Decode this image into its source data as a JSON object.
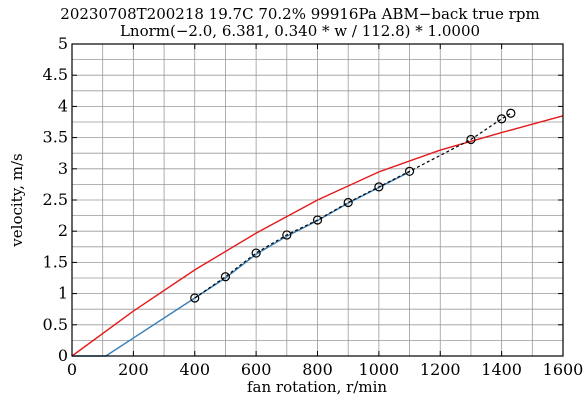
{
  "chart_data": {
    "type": "line",
    "title": "20230708T200218 19.7C 70.2% 99916Pa ABM−back true rpm",
    "subtitle": "Lnorm(−2.0, 6.381, 0.340 * w / 112.8) * 1.0000",
    "xlabel": "fan rotation, r/min",
    "ylabel": "velocity, m/s",
    "xlim": [
      0,
      1600
    ],
    "ylim": [
      0,
      5
    ],
    "xticks": [
      0,
      200,
      400,
      600,
      800,
      1000,
      1200,
      1400,
      1600
    ],
    "xtick_labels": [
      "0",
      "200",
      "400",
      "600",
      "800",
      "1000",
      "1200",
      "1400",
      "1600"
    ],
    "yticks": [
      0,
      0.5,
      1,
      1.5,
      2,
      2.5,
      3,
      3.5,
      4,
      4.5,
      5
    ],
    "ytick_labels": [
      "0",
      "0.5",
      "1",
      "1.5",
      "2",
      "2.5",
      "3",
      "3.5",
      "4",
      "4.5",
      "5"
    ],
    "grid": true,
    "legend": "none",
    "series": [
      {
        "style": "solid",
        "color": "#e41a1c",
        "x": [
          0,
          200,
          400,
          600,
          800,
          1000,
          1200,
          1400,
          1600
        ],
        "y": [
          0,
          0.72,
          1.38,
          1.97,
          2.5,
          2.95,
          3.3,
          3.58,
          3.85
        ]
      },
      {
        "style": "solid",
        "color": "#377eb8",
        "x": [
          0,
          110,
          400,
          500,
          600,
          700,
          800,
          900,
          1000,
          1100
        ],
        "y": [
          0,
          0,
          0.93,
          1.25,
          1.63,
          1.92,
          2.17,
          2.45,
          2.7,
          2.95
        ]
      },
      {
        "style": "dashed-markers",
        "color": "#000000",
        "marker": "circle",
        "x": [
          400,
          500,
          600,
          700,
          800,
          900,
          1000,
          1100,
          1300,
          1400,
          1430
        ],
        "y": [
          0.93,
          1.27,
          1.65,
          1.94,
          2.18,
          2.46,
          2.71,
          2.96,
          3.47,
          3.8,
          3.89
        ]
      }
    ]
  }
}
